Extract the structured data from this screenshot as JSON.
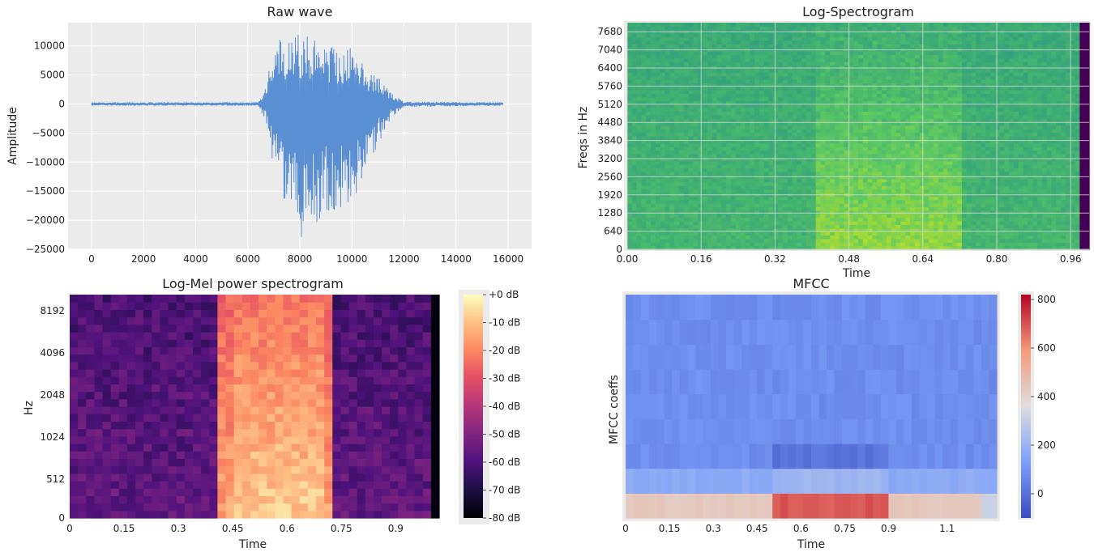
{
  "chart_data": [
    {
      "type": "line",
      "title": "Raw wave",
      "xlabel": "",
      "ylabel": "Amplitude",
      "xlim": [
        -900,
        16900
      ],
      "ylim": [
        -25000,
        14000
      ],
      "xticks": [
        0,
        2000,
        4000,
        6000,
        8000,
        10000,
        12000,
        14000,
        16000
      ],
      "xtick_labels": [
        "0",
        "2000",
        "4000",
        "6000",
        "8000",
        "10000",
        "12000",
        "14000",
        "16000"
      ],
      "yticks": [
        10000,
        5000,
        0,
        -5000,
        -10000,
        -15000,
        -20000,
        -25000
      ],
      "ytick_labels": [
        "10000",
        "5000",
        "0",
        "−5000",
        "−10000",
        "−15000",
        "−20000",
        "−25000"
      ],
      "n_samples": 16000,
      "envelope": {
        "x": [
          0,
          6400,
          6700,
          7000,
          7500,
          8000,
          8500,
          9000,
          9500,
          10000,
          10500,
          11000,
          11500,
          12000,
          15800
        ],
        "upper": [
          300,
          300,
          3000,
          11000,
          11500,
          12000,
          11500,
          10500,
          10000,
          9800,
          7000,
          5000,
          2000,
          400,
          300
        ],
        "lower": [
          -300,
          -300,
          -3000,
          -12500,
          -20000,
          -23500,
          -22000,
          -20000,
          -18500,
          -17000,
          -12000,
          -7000,
          -2500,
          -500,
          -300
        ]
      },
      "line_color": "#5b8fd4"
    },
    {
      "type": "heatmap",
      "title": "Log-Spectrogram",
      "xlabel": "Time",
      "ylabel": "Freqs in Hz",
      "xlim": [
        0.0,
        1.0
      ],
      "ylim": [
        0,
        8000
      ],
      "xticks": [
        0.0,
        0.16,
        0.32,
        0.48,
        0.64,
        0.8,
        0.96
      ],
      "xtick_labels": [
        "0.00",
        "0.16",
        "0.32",
        "0.48",
        "0.64",
        "0.80",
        "0.96"
      ],
      "yticks": [
        0,
        640,
        1280,
        1920,
        2560,
        3200,
        3840,
        4480,
        5120,
        5760,
        6400,
        7040,
        7680
      ],
      "ytick_labels": [
        "0",
        "640",
        "1280",
        "1920",
        "2560",
        "3200",
        "3840",
        "4480",
        "5120",
        "5760",
        "6400",
        "7040",
        "7680"
      ],
      "colormap": "viridis",
      "speech_region": [
        0.41,
        0.72
      ]
    },
    {
      "type": "heatmap",
      "title": "Log-Mel power spectrogram",
      "xlabel": "Time",
      "ylabel": "Hz",
      "xlim": [
        0.0,
        1.02
      ],
      "xticks": [
        0,
        0.15,
        0.3,
        0.45,
        0.6,
        0.75,
        0.9
      ],
      "xtick_labels": [
        "0",
        "0.15",
        "0.3",
        "0.45",
        "0.6",
        "0.75",
        "0.9"
      ],
      "ytick_labels": [
        "0",
        "512",
        "1024",
        "2048",
        "4096",
        "8192"
      ],
      "colormap": "magma",
      "colorbar": {
        "labels": [
          "+0 dB",
          "-10 dB",
          "-20 dB",
          "-30 dB",
          "-40 dB",
          "-50 dB",
          "-60 dB",
          "-70 dB",
          "-80 dB"
        ],
        "range": [
          -80,
          0
        ]
      },
      "speech_region": [
        0.41,
        0.73
      ]
    },
    {
      "type": "heatmap",
      "title": "MFCC",
      "xlabel": "Time",
      "ylabel": "MFCC coeffs",
      "xlim": [
        0,
        1.27
      ],
      "xticks": [
        0,
        0.15,
        0.3,
        0.45,
        0.6,
        0.75,
        0.9,
        1.1
      ],
      "xtick_labels": [
        "0",
        "0.15",
        "0.3",
        "0.45",
        "0.6",
        "0.75",
        "0.9",
        "1.1"
      ],
      "n_coeffs": 9,
      "colormap": "coolwarm",
      "colorbar": {
        "ticks": [
          800,
          600,
          400,
          200,
          0
        ],
        "tick_labels": [
          "800",
          "600",
          "400",
          "200",
          "0"
        ],
        "range": [
          -100,
          820
        ]
      }
    }
  ]
}
